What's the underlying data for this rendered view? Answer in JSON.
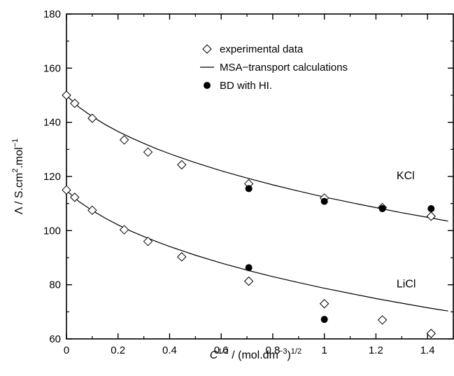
{
  "chart_data": {
    "type": "scatter",
    "title": "",
    "xlabel": "C^{1/2} / (mol.dm^{-3})^{1/2}",
    "ylabel": "Λ / S.cm².mol⁻¹",
    "xlim": [
      0,
      1.5
    ],
    "ylim": [
      60,
      180
    ],
    "x_ticks": [
      0,
      0.2,
      0.4,
      0.6,
      0.8,
      1,
      1.2,
      1.4
    ],
    "x_tick_labels": [
      "0",
      "0.2",
      "0.4",
      "0.6",
      "0.8",
      "1",
      "1.2",
      "1.4"
    ],
    "y_ticks": [
      60,
      80,
      100,
      120,
      140,
      160,
      180
    ],
    "y_tick_labels": [
      "60",
      "80",
      "100",
      "120",
      "140",
      "160",
      "180"
    ],
    "grid": false,
    "legend_position": "top-right",
    "legend": [
      {
        "label": "experimental data",
        "marker": "open-diamond"
      },
      {
        "label": "MSA−transport calculations",
        "marker": "line"
      },
      {
        "label": "BD with HI.",
        "marker": "filled-circle"
      }
    ],
    "series_labels": {
      "KCl": {
        "text": "KCl",
        "x": 1.28,
        "y": 119
      },
      "LiCl": {
        "text": "LiCl",
        "x": 1.28,
        "y": 79
      }
    },
    "series": [
      {
        "name": "experimental data",
        "group": "KCl",
        "style": "open-diamond",
        "points": [
          [
            0,
            150
          ],
          [
            0.032,
            147
          ],
          [
            0.1,
            141.5
          ],
          [
            0.224,
            133.5
          ],
          [
            0.316,
            129
          ],
          [
            0.447,
            124.3
          ],
          [
            0.707,
            117.3
          ],
          [
            1.0,
            112
          ],
          [
            1.225,
            108.5
          ],
          [
            1.414,
            105.3
          ]
        ]
      },
      {
        "name": "experimental data",
        "group": "LiCl",
        "style": "open-diamond",
        "points": [
          [
            0,
            115
          ],
          [
            0.032,
            112.3
          ],
          [
            0.1,
            107.5
          ],
          [
            0.224,
            100.3
          ],
          [
            0.316,
            96
          ],
          [
            0.447,
            90.3
          ],
          [
            0.707,
            81.3
          ],
          [
            1.0,
            73
          ],
          [
            1.225,
            67
          ],
          [
            1.414,
            62
          ]
        ]
      },
      {
        "name": "MSA−transport calculations",
        "group": "KCl",
        "style": "line",
        "points": [
          [
            0,
            149.9
          ],
          [
            0.05,
            145.5
          ],
          [
            0.1,
            142.1
          ],
          [
            0.15,
            139.2
          ],
          [
            0.2,
            136.6
          ],
          [
            0.25,
            134.3
          ],
          [
            0.3,
            132.2
          ],
          [
            0.35,
            130.2
          ],
          [
            0.4,
            128.4
          ],
          [
            0.45,
            126.7
          ],
          [
            0.5,
            125.1
          ],
          [
            0.6,
            122.1
          ],
          [
            0.7,
            119.4
          ],
          [
            0.8,
            116.9
          ],
          [
            0.9,
            114.6
          ],
          [
            1.0,
            112.4
          ],
          [
            1.1,
            110.4
          ],
          [
            1.2,
            108.5
          ],
          [
            1.3,
            106.6
          ],
          [
            1.4,
            104.9
          ],
          [
            1.48,
            103.5
          ]
        ]
      },
      {
        "name": "MSA−transport calculations",
        "group": "LiCl",
        "style": "line",
        "points": [
          [
            0,
            114.8
          ],
          [
            0.05,
            110.6
          ],
          [
            0.1,
            107.4
          ],
          [
            0.15,
            104.6
          ],
          [
            0.2,
            102.1
          ],
          [
            0.25,
            99.8
          ],
          [
            0.3,
            97.8
          ],
          [
            0.35,
            95.9
          ],
          [
            0.4,
            94.1
          ],
          [
            0.45,
            92.5
          ],
          [
            0.5,
            90.9
          ],
          [
            0.6,
            88.0
          ],
          [
            0.7,
            85.4
          ],
          [
            0.8,
            83.0
          ],
          [
            0.9,
            80.8
          ],
          [
            1.0,
            78.7
          ],
          [
            1.1,
            76.8
          ],
          [
            1.2,
            74.9
          ],
          [
            1.3,
            73.2
          ],
          [
            1.4,
            71.5
          ],
          [
            1.48,
            70.3
          ]
        ]
      },
      {
        "name": "BD with HI.",
        "group": "KCl",
        "style": "filled-circle",
        "points": [
          [
            0.707,
            115.5
          ],
          [
            1.0,
            110.8
          ],
          [
            1.225,
            108.1
          ],
          [
            1.414,
            108.1
          ]
        ]
      },
      {
        "name": "BD with HI.",
        "group": "LiCl",
        "style": "filled-circle",
        "points": [
          [
            0.707,
            86.3
          ],
          [
            1.0,
            67.2
          ]
        ]
      }
    ]
  }
}
